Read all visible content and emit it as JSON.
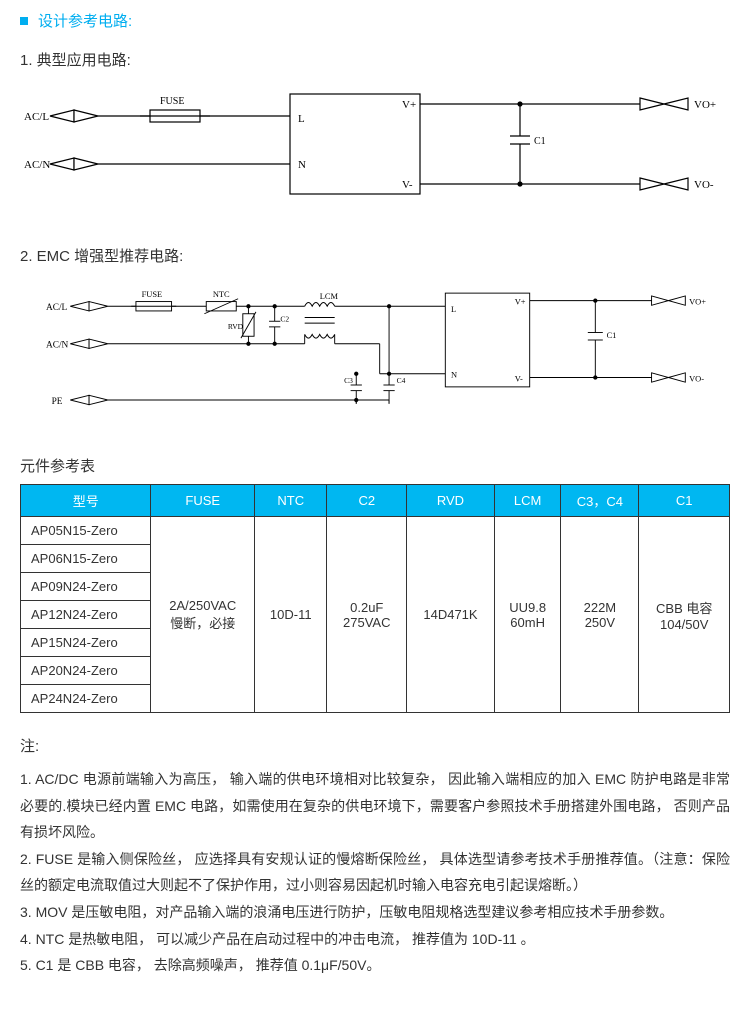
{
  "accent_color": "#00b7f1",
  "header": {
    "title": "设计参考电路:"
  },
  "sub1": "1.   典型应用电路:",
  "diagram1": {
    "labels": {
      "acl": "AC/L",
      "acn": "AC/N",
      "fuse": "FUSE",
      "l": "L",
      "n": "N",
      "vplus": "V+",
      "vminus": "V-",
      "c1": "C1",
      "voplus": "VO+",
      "vominus": "VO-"
    },
    "colors": {
      "stroke": "#000000",
      "fill": "#ffffff",
      "text": "#000000"
    }
  },
  "sub2": "2.   EMC 增强型推荐电路:",
  "diagram2": {
    "labels": {
      "acl": "AC/L",
      "acn": "AC/N",
      "pe": "PE",
      "fuse": "FUSE",
      "ntc": "NTC",
      "rvd": "RVD",
      "c2": "C2",
      "lcm": "LCM",
      "c3": "C3",
      "c4": "C4",
      "l": "L",
      "n": "N",
      "vplus": "V+",
      "vminus": "V-",
      "c1": "C1",
      "voplus": "VO+",
      "vominus": "VO-"
    },
    "colors": {
      "stroke": "#000000",
      "fill": "#ffffff",
      "text": "#000000"
    }
  },
  "table_title": "元件参考表",
  "table": {
    "headers": [
      "型号",
      "FUSE",
      "NTC",
      "C2",
      "RVD",
      "LCM",
      "C3，C4",
      "C1"
    ],
    "models": [
      "AP05N15-Zero",
      "AP06N15-Zero",
      "AP09N24-Zero",
      "AP12N24-Zero",
      "AP15N24-Zero",
      "AP20N24-Zero",
      "AP24N24-Zero"
    ],
    "fuse": "2A/250VAC\n慢断，必接",
    "ntc": "10D-11",
    "c2": "0.2uF\n275VAC",
    "rvd": "14D471K",
    "lcm": "UU9.8\n60mH",
    "c3c4": "222M\n250V",
    "c1": "CBB 电容\n104/50V"
  },
  "notes_heading": "注:",
  "notes": [
    "1. AC/DC 电源前端输入为高压， 输入端的供电环境相对比较复杂， 因此输入端相应的加入 EMC 防护电路是非常必要的.模块已经内置 EMC 电路，如需使用在复杂的供电环境下，需要客户参照技术手册搭建外围电路， 否则产品有损坏风险。",
    "2. FUSE 是输入侧保险丝， 应选择具有安规认证的慢熔断保险丝， 具体选型请参考技术手册推荐值。（注意：保险丝的额定电流取值过大则起不了保护作用，过小则容易因起机时输入电容充电引起误熔断。）",
    "3. MOV 是压敏电阻，对产品输入端的浪涌电压进行防护，压敏电阻规格选型建议参考相应技术手册参数。",
    "4. NTC 是热敏电阻， 可以减少产品在启动过程中的冲击电流， 推荐值为 10D-11   。",
    "5. C1 是 CBB 电容， 去除高频噪声， 推荐值 0.1μF/50V。"
  ]
}
